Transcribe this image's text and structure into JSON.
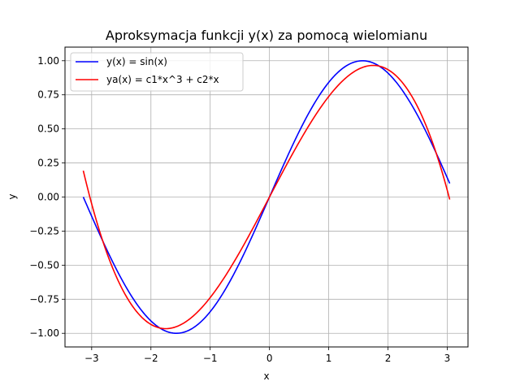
{
  "chart_data": {
    "type": "line",
    "title": "Aproksymacja funkcji y(x) za pomocą wielomianu",
    "xlabel": "x",
    "ylabel": "y",
    "xlim": [
      -3.45,
      3.35
    ],
    "ylim": [
      -1.1,
      1.1
    ],
    "grid": true,
    "legend_position": "top-left",
    "x_ticks": [
      -3,
      -2,
      -1,
      0,
      1,
      2,
      3
    ],
    "x_tick_labels": [
      "−3",
      "−2",
      "−1",
      "0",
      "1",
      "2",
      "3"
    ],
    "y_ticks": [
      -1.0,
      -0.75,
      -0.5,
      -0.25,
      0.0,
      0.25,
      0.5,
      0.75,
      1.0
    ],
    "y_tick_labels": [
      "−1.00",
      "−0.75",
      "−0.50",
      "−0.25",
      "0.00",
      "0.25",
      "0.50",
      "0.75",
      "1.00"
    ],
    "x_range": [
      -3.14159,
      3.04159
    ],
    "series": [
      {
        "name": "y(x) = sin(x)",
        "color": "#0000ff",
        "x": [
          -3.1416,
          -2.9,
          -2.6,
          -2.3,
          -2.0,
          -1.8,
          -1.5708,
          -1.3,
          -1.0,
          -0.7,
          -0.4,
          0.0,
          0.4,
          0.7,
          1.0,
          1.3,
          1.5708,
          1.8,
          2.0,
          2.3,
          2.6,
          2.9,
          3.0416
        ],
        "y": [
          0.0,
          -0.239,
          -0.516,
          -0.746,
          -0.909,
          -0.974,
          -1.0,
          -0.964,
          -0.841,
          -0.644,
          -0.389,
          0.0,
          0.389,
          0.644,
          0.841,
          0.964,
          1.0,
          0.974,
          0.909,
          0.746,
          0.516,
          0.239,
          0.1
        ]
      },
      {
        "name": "ya(x) = c1*x^3 + c2*x",
        "color": "#ff0000",
        "x": [
          -3.1416,
          -3.0,
          -2.8,
          -2.5,
          -2.2,
          -2.0,
          -1.8,
          -1.6,
          -1.3,
          -1.0,
          -0.7,
          -0.4,
          0.0,
          0.4,
          0.7,
          1.0,
          1.3,
          1.6,
          1.8,
          2.0,
          2.2,
          2.5,
          2.8,
          3.0416
        ],
        "y": [
          0.199,
          -0.022,
          -0.307,
          -0.673,
          -0.913,
          -0.983,
          -0.998,
          -0.972,
          -0.863,
          -0.668,
          -0.456,
          -0.271,
          0.0,
          0.271,
          0.456,
          0.668,
          0.863,
          0.972,
          0.998,
          0.983,
          0.913,
          0.673,
          0.307,
          -0.022
        ]
      }
    ]
  }
}
